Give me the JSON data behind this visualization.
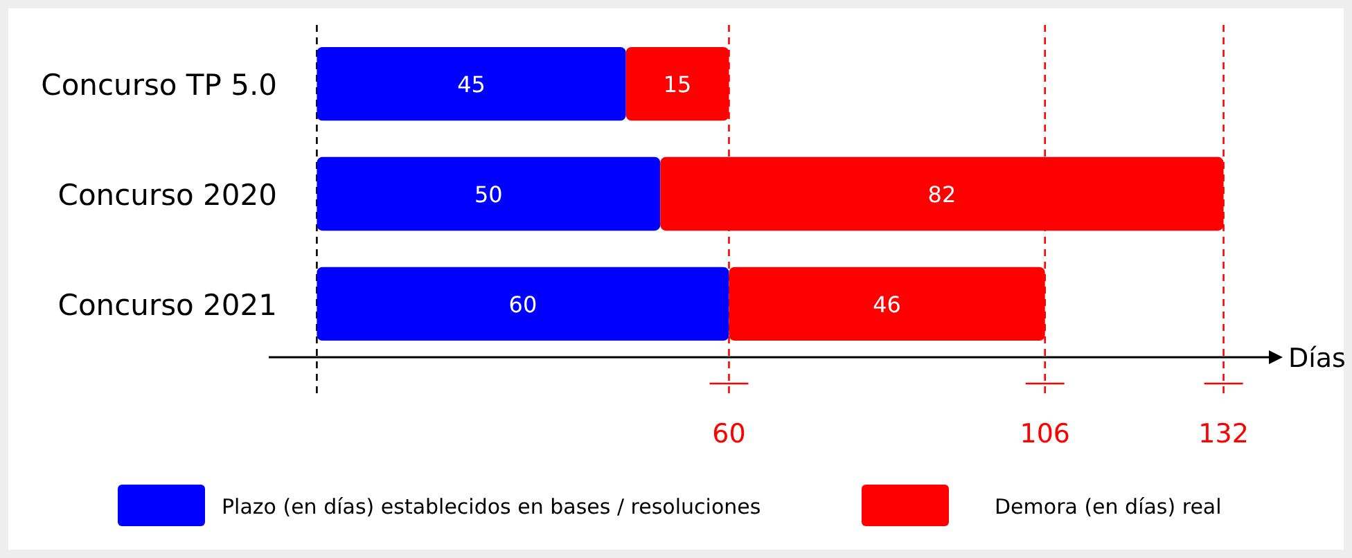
{
  "chart_data": {
    "type": "bar",
    "orientation": "horizontal",
    "stacked": true,
    "categories": [
      "Concurso TP 5.0",
      "Concurso 2020",
      "Concurso 2021"
    ],
    "series": [
      {
        "name": "Plazo (en días) establecidos en bases / resoluciones",
        "color": "#0000ff",
        "values": [
          45,
          50,
          60
        ]
      },
      {
        "name": "Demora (en días) real",
        "color": "#ff0000",
        "values": [
          15,
          82,
          46
        ]
      }
    ],
    "xlabel": "Días",
    "xlim": [
      -7,
      139
    ],
    "xticks": [
      60,
      106,
      132
    ],
    "tick_labels": "x",
    "data_labels": true,
    "legend": "bottom",
    "grid": false,
    "ref_lines": [
      {
        "axis": "x",
        "value": 0,
        "color": "#000000",
        "line_style": "dashed"
      },
      {
        "axis": "x",
        "value": 60,
        "color": "#ff0000",
        "line_style": "dashed"
      },
      {
        "axis": "x",
        "value": 106,
        "color": "#ff0000",
        "line_style": "dashed"
      },
      {
        "axis": "x",
        "value": 132,
        "color": "#ff0000",
        "line_style": "dashed"
      }
    ]
  }
}
